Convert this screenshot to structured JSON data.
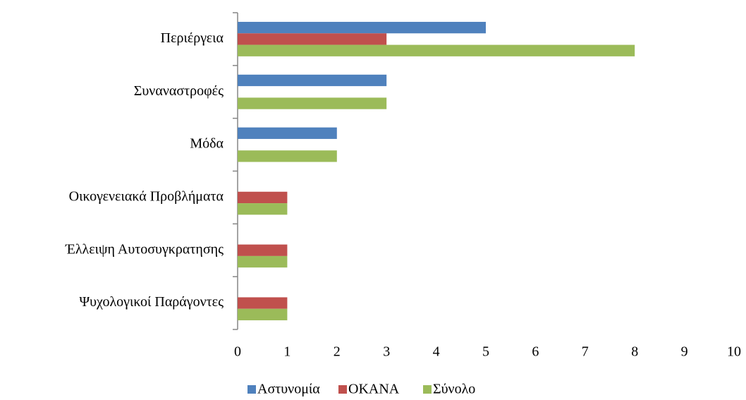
{
  "chart_data": {
    "type": "barh",
    "categories": [
      "Περιέργεια",
      "Συναναστροφές",
      "Μόδα",
      "Οικογενειακά Προβλήματα",
      "Έλλειψη Αυτοσυγκρατησης",
      "Ψυχολογικοί Παράγοντες"
    ],
    "series": [
      {
        "name": "Αστυνομία",
        "color": "#4f81bd",
        "values": [
          5,
          3,
          2,
          0,
          0,
          0
        ]
      },
      {
        "name": "ΟΚΑΝΑ",
        "color": "#c0504d",
        "values": [
          3,
          0,
          0,
          1,
          1,
          1
        ]
      },
      {
        "name": "Σύνολο",
        "color": "#9bbb59",
        "values": [
          8,
          3,
          2,
          1,
          1,
          1
        ]
      }
    ],
    "xlim": [
      0,
      10
    ],
    "xticks": [
      0,
      1,
      2,
      3,
      4,
      5,
      6,
      7,
      8,
      9,
      10
    ],
    "grid": false,
    "legend": "bottom"
  }
}
